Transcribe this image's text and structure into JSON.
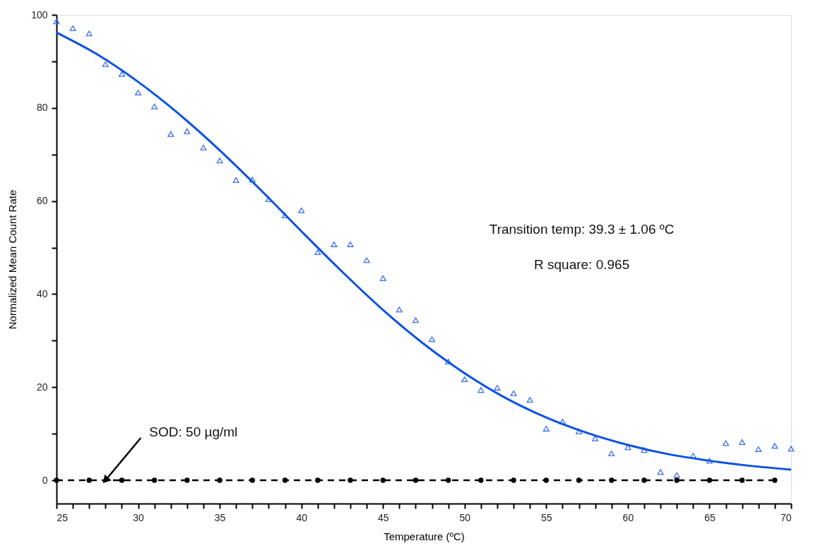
{
  "chart_data": {
    "type": "scatter",
    "xlabel": "Temperature (ºC)",
    "ylabel": "Normalized  Mean Count Rate",
    "xlim": [
      25,
      70
    ],
    "ylim": [
      -5,
      100
    ],
    "xticks": [
      25,
      {
        "value": 26,
        "label": null
      },
      {
        "value": 27,
        "label": null
      },
      {
        "value": 28,
        "label": null
      },
      {
        "value": 29,
        "label": null
      },
      30,
      {
        "value": 31,
        "label": null
      },
      {
        "value": 32,
        "label": null
      },
      {
        "value": 33,
        "label": null
      },
      {
        "value": 34,
        "label": null
      },
      35,
      {
        "value": 36,
        "label": null
      },
      {
        "value": 37,
        "label": null
      },
      {
        "value": 38,
        "label": null
      },
      {
        "value": 39,
        "label": null
      },
      40,
      {
        "value": 41,
        "label": null
      },
      {
        "value": 42,
        "label": null
      },
      {
        "value": 43,
        "label": null
      },
      {
        "value": 44,
        "label": null
      },
      45,
      {
        "value": 46,
        "label": null
      },
      {
        "value": 47,
        "label": null
      },
      {
        "value": 48,
        "label": null
      },
      {
        "value": 49,
        "label": null
      },
      50,
      {
        "value": 51,
        "label": null
      },
      {
        "value": 52,
        "label": null
      },
      {
        "value": 53,
        "label": null
      },
      {
        "value": 54,
        "label": null
      },
      55,
      {
        "value": 56,
        "label": null
      },
      {
        "value": 57,
        "label": null
      },
      {
        "value": 58,
        "label": null
      },
      {
        "value": 59,
        "label": null
      },
      60,
      {
        "value": 61,
        "label": null
      },
      {
        "value": 62,
        "label": null
      },
      {
        "value": 63,
        "label": null
      },
      {
        "value": 64,
        "label": null
      },
      65,
      {
        "value": 66,
        "label": null
      },
      {
        "value": 67,
        "label": null
      },
      {
        "value": 68,
        "label": null
      },
      {
        "value": 69,
        "label": null
      },
      70
    ],
    "yticks": [
      0,
      {
        "value": 10,
        "label": null
      },
      20,
      {
        "value": 30,
        "label": null
      },
      40,
      {
        "value": 50,
        "label": null
      },
      60,
      {
        "value": 70,
        "label": null
      },
      80,
      {
        "value": 90,
        "label": null
      },
      100
    ],
    "grid": false,
    "series": [
      {
        "color": "#3a6ff0",
        "marker": "triangle",
        "x": [
          25,
          26,
          27,
          28,
          29,
          30,
          31,
          32,
          33,
          34,
          35,
          36,
          37,
          38,
          39,
          40,
          41,
          42,
          43,
          44,
          45,
          46,
          47,
          48,
          49,
          50,
          51,
          52,
          53,
          54,
          55,
          56,
          57,
          58,
          59,
          60,
          61,
          62,
          63,
          64,
          65,
          66,
          67,
          68,
          69,
          70
        ],
        "values": [
          98.6,
          97.1,
          96.0,
          89.4,
          87.3,
          83.3,
          80.3,
          74.4,
          75.0,
          71.5,
          68.7,
          64.5,
          64.6,
          60.4,
          56.9,
          58.0,
          49.0,
          50.7,
          50.7,
          47.3,
          43.4,
          36.7,
          34.4,
          30.3,
          25.5,
          21.7,
          19.4,
          19.9,
          18.7,
          17.3,
          11.1,
          12.6,
          10.5,
          9.0,
          5.8,
          7.1,
          6.5,
          1.8,
          1.1,
          5.3,
          4.2,
          8.0,
          8.2,
          6.7,
          7.4,
          6.8
        ]
      },
      {
        "type": "line",
        "color": "#0a50e6",
        "marker": "none",
        "line_style": "solid",
        "x": [
          25,
          27.5,
          30,
          32.5,
          35,
          37.5,
          40,
          42.5,
          45,
          47.5,
          50,
          52.5,
          55,
          57.5,
          60,
          62.5,
          65,
          67.5,
          70
        ],
        "values": [
          96.2,
          91.5,
          85.6,
          78.7,
          70.9,
          62.4,
          53.5,
          44.8,
          36.6,
          29.3,
          23.0,
          17.7,
          13.5,
          10.2,
          7.6,
          5.6,
          4.2,
          3.1,
          2.3
        ]
      },
      {
        "type": "line",
        "color": "#000000",
        "marker": "circle",
        "line_style": "dashed",
        "x": [
          25,
          27,
          29,
          31,
          33,
          35,
          37,
          39,
          41,
          43,
          45,
          47,
          49,
          51,
          53,
          55,
          57,
          59,
          61,
          63,
          65,
          67,
          69
        ],
        "values": [
          0,
          0,
          0,
          0,
          0,
          0,
          0,
          0,
          0,
          0,
          0,
          0,
          0,
          0,
          0,
          0,
          0,
          0,
          0,
          0,
          0,
          0,
          0
        ]
      }
    ],
    "annotations": [
      "Transition temp:   39.3 ± 1.06   ºC",
      "R square:   0.965",
      {
        "text": "SOD: 50 µg/ml",
        "x": 28,
        "y": 0
      }
    ]
  }
}
